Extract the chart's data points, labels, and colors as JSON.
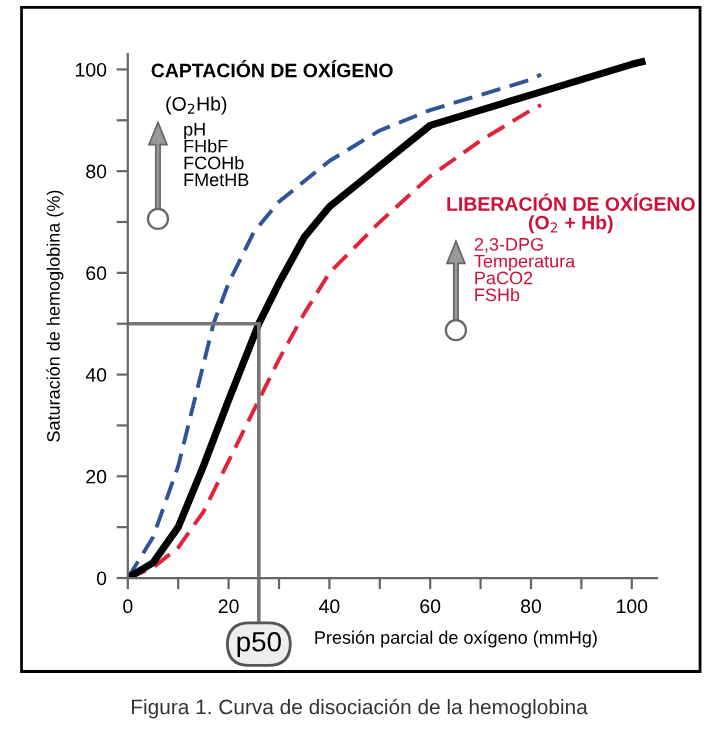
{
  "chart_data": {
    "type": "line",
    "xlabel": "Presión parcial de oxígeno (mmHg)",
    "ylabel": "Saturación de hemoglobina (%)",
    "xlim": [
      0,
      105
    ],
    "ylim": [
      0,
      103
    ],
    "xticks": [
      0,
      {
        "value": 10,
        "label": null
      },
      20,
      {
        "value": 30,
        "label": null
      },
      40,
      {
        "value": 50,
        "label": null
      },
      60,
      {
        "value": 70,
        "label": null
      },
      80,
      {
        "value": 90,
        "label": null
      },
      100
    ],
    "yticks": [
      0,
      {
        "value": 10,
        "label": null
      },
      20,
      {
        "value": 30,
        "label": null
      },
      40,
      {
        "value": 50,
        "label": null
      },
      60,
      {
        "value": 70,
        "label": null
      },
      80,
      {
        "value": 90,
        "label": null
      },
      100
    ],
    "grid": false,
    "legend": false,
    "series": [
      {
        "color": "#2f5597",
        "line_style": "dashed",
        "x": [
          0,
          5,
          10,
          15,
          17,
          20,
          25,
          30,
          40,
          50,
          60,
          70,
          80,
          82
        ],
        "values": [
          0,
          8,
          22,
          42,
          50,
          58,
          68,
          74,
          82,
          88,
          92,
          95,
          98,
          99
        ]
      },
      {
        "color": "#e0243c",
        "line_style": "dashed",
        "x": [
          0,
          5,
          10,
          15,
          20,
          26,
          30,
          35,
          40,
          50,
          60,
          70,
          80,
          82
        ],
        "values": [
          0,
          2,
          6,
          13,
          23,
          35,
          43,
          52,
          60,
          70,
          79,
          86,
          92,
          93
        ]
      },
      {
        "color": "#000000",
        "line_style": "solid",
        "x": [
          0,
          5,
          10,
          15,
          20,
          26,
          30,
          35,
          40,
          50,
          60,
          70,
          80,
          90,
          100,
          102
        ],
        "values": [
          0,
          3,
          10,
          22,
          35,
          50,
          58,
          67,
          73,
          81,
          89,
          92,
          95,
          98,
          101,
          101.5
        ]
      }
    ],
    "annotations": [
      {
        "text": "p50",
        "x": 26,
        "y": 50
      },
      "CAPTACIÓN DE OXÍGENO",
      "(O$_{2}$Hb)",
      "pH\nFHbF\nFCOHb\nFMetHB",
      "LIBERACIÓN DE OXÍGENO",
      "(O$_{2}$ + Hb)",
      "2,3-DPG\nTemperatura\nPaCO2\nFSHb",
      "Figura 1. Curva de disociación de la hemoglobina"
    ]
  }
}
